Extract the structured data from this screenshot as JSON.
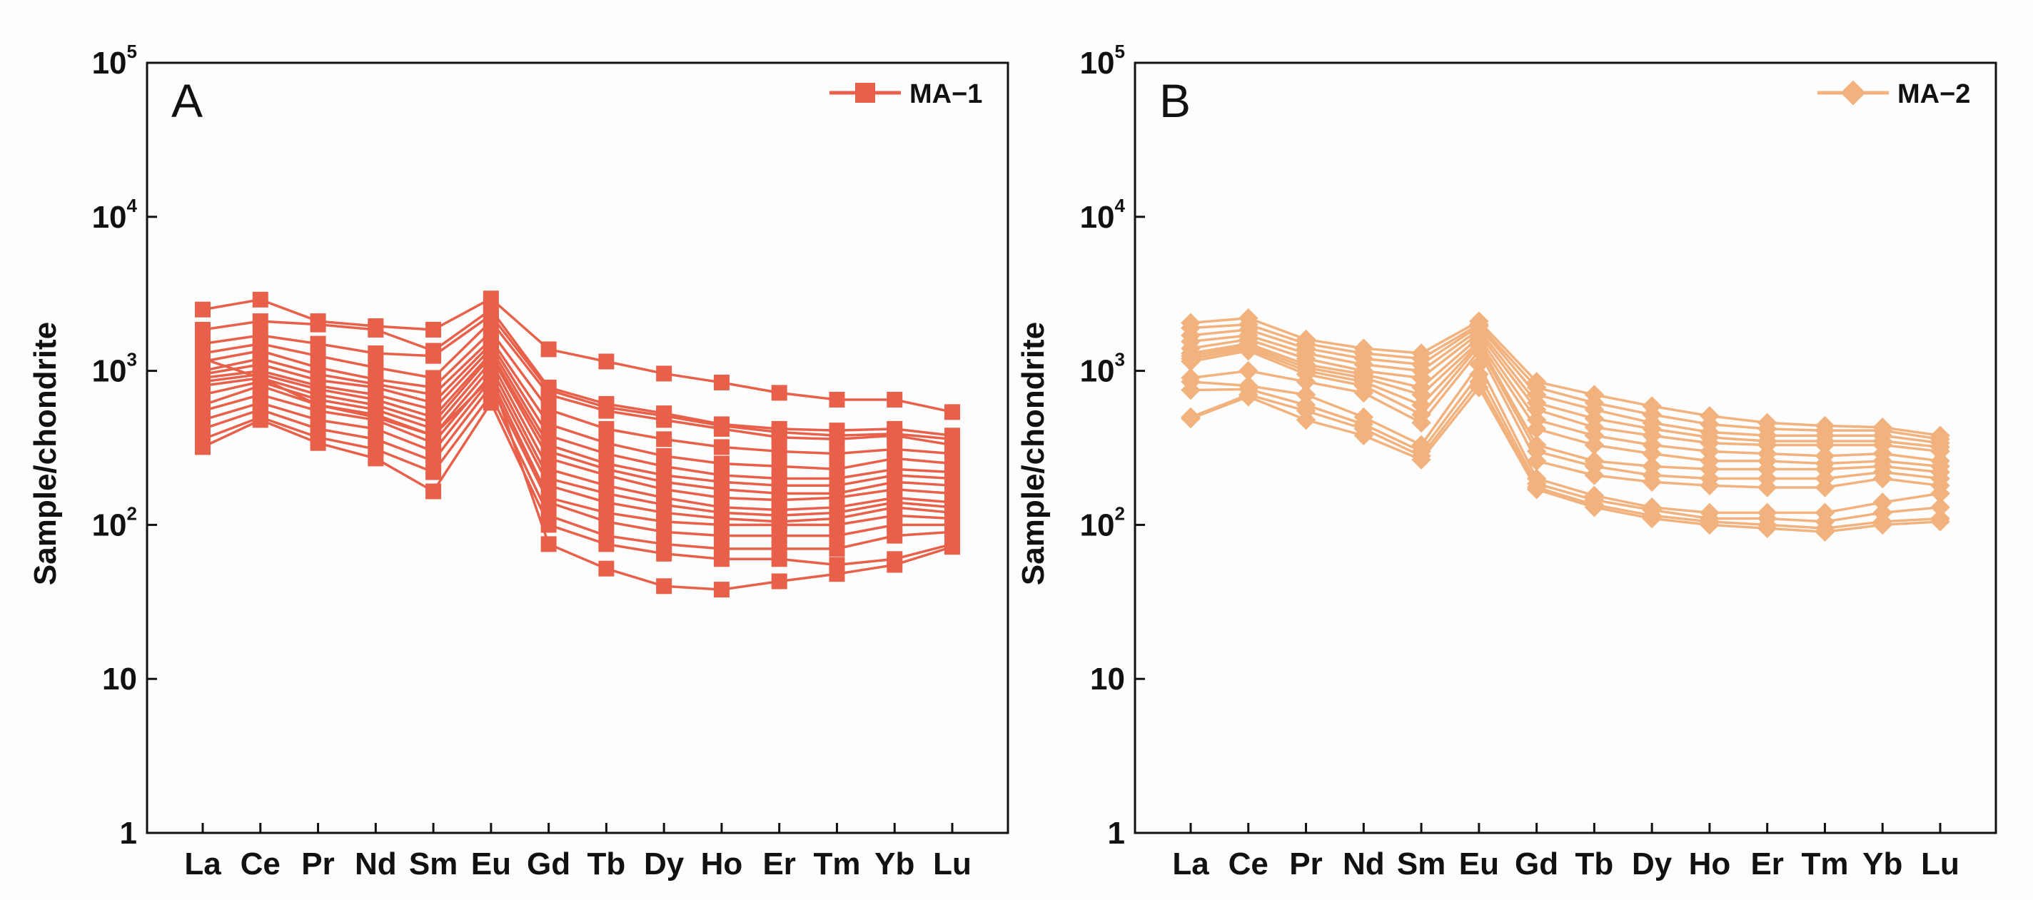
{
  "chart_data": [
    {
      "type": "line",
      "panel_label": "A",
      "ylabel": "Sample/chondrite",
      "yscale": "log",
      "ylim": [
        1,
        100000
      ],
      "y_ticks": [
        {
          "value": 1,
          "base": "1",
          "exp": ""
        },
        {
          "value": 10,
          "base": "10",
          "exp": ""
        },
        {
          "value": 100,
          "base": "10",
          "exp": "2"
        },
        {
          "value": 1000,
          "base": "10",
          "exp": "3"
        },
        {
          "value": 10000,
          "base": "10",
          "exp": "4"
        },
        {
          "value": 100000,
          "base": "10",
          "exp": "5"
        }
      ],
      "categories": [
        "La",
        "Ce",
        "Pr",
        "Nd",
        "Sm",
        "Eu",
        "Gd",
        "Tb",
        "Dy",
        "Ho",
        "Er",
        "Tm",
        "Yb",
        "Lu"
      ],
      "legend": {
        "label": "MA−1",
        "placement": "top-right"
      },
      "color": "#e8604a",
      "marker": "square",
      "series": [
        {
          "values": [
            2500,
            2900,
            2100,
            1950,
            1850,
            2950,
            1380,
            1150,
            960,
            840,
            720,
            650,
            650,
            540
          ]
        },
        {
          "values": [
            1850,
            2100,
            2000,
            1850,
            1350,
            2500,
            780,
            610,
            530,
            450,
            420,
            410,
            420,
            380
          ]
        },
        {
          "values": [
            1500,
            1700,
            1500,
            1300,
            1250,
            2300,
            750,
            580,
            510,
            440,
            400,
            380,
            390,
            360
          ]
        },
        {
          "values": [
            1300,
            1500,
            1250,
            1050,
            900,
            2100,
            700,
            550,
            480,
            420,
            370,
            360,
            380,
            330
          ]
        },
        {
          "values": [
            1150,
            1350,
            1050,
            880,
            780,
            1800,
            560,
            420,
            360,
            320,
            300,
            290,
            310,
            290
          ]
        },
        {
          "values": [
            1000,
            1200,
            950,
            820,
            700,
            1600,
            450,
            340,
            280,
            250,
            240,
            230,
            270,
            250
          ]
        },
        {
          "values": [
            950,
            1100,
            870,
            780,
            620,
            1500,
            380,
            290,
            240,
            210,
            200,
            200,
            230,
            220
          ]
        },
        {
          "values": [
            900,
            1000,
            800,
            700,
            560,
            1400,
            330,
            250,
            210,
            190,
            180,
            180,
            210,
            200
          ]
        },
        {
          "values": [
            850,
            950,
            760,
            650,
            500,
            1300,
            300,
            230,
            190,
            170,
            160,
            160,
            190,
            180
          ]
        },
        {
          "values": [
            800,
            900,
            700,
            600,
            460,
            1250,
            270,
            210,
            170,
            150,
            145,
            150,
            170,
            160
          ]
        },
        {
          "values": [
            700,
            850,
            650,
            560,
            420,
            1150,
            230,
            180,
            150,
            130,
            125,
            130,
            150,
            140
          ]
        },
        {
          "values": [
            600,
            800,
            600,
            520,
            380,
            1050,
            200,
            160,
            135,
            120,
            115,
            120,
            140,
            130
          ]
        },
        {
          "values": [
            550,
            700,
            550,
            480,
            340,
            950,
            180,
            140,
            120,
            110,
            105,
            110,
            130,
            120
          ]
        },
        {
          "values": [
            480,
            620,
            480,
            420,
            300,
            880,
            150,
            120,
            105,
            100,
            100,
            100,
            115,
            110
          ]
        },
        {
          "values": [
            420,
            560,
            420,
            360,
            260,
            800,
            140,
            105,
            90,
            85,
            85,
            85,
            100,
            100
          ]
        },
        {
          "values": [
            360,
            500,
            370,
            310,
            220,
            700,
            115,
            85,
            75,
            70,
            70,
            70,
            85,
            90
          ]
        },
        {
          "values": [
            320,
            480,
            340,
            270,
            165,
            620,
            100,
            75,
            65,
            60,
            60,
            55,
            60,
            75
          ]
        },
        {
          "values": [
            1200,
            900,
            600,
            500,
            380,
            900,
            75,
            52,
            40,
            38,
            43,
            48,
            55,
            72
          ]
        }
      ]
    },
    {
      "type": "line",
      "panel_label": "B",
      "ylabel": "Sample/chondrite",
      "yscale": "log",
      "ylim": [
        1,
        100000
      ],
      "y_ticks": [
        {
          "value": 1,
          "base": "1",
          "exp": ""
        },
        {
          "value": 10,
          "base": "10",
          "exp": ""
        },
        {
          "value": 100,
          "base": "10",
          "exp": "2"
        },
        {
          "value": 1000,
          "base": "10",
          "exp": "3"
        },
        {
          "value": 10000,
          "base": "10",
          "exp": "4"
        },
        {
          "value": 100000,
          "base": "10",
          "exp": "5"
        }
      ],
      "categories": [
        "La",
        "Ce",
        "Pr",
        "Nd",
        "Sm",
        "Eu",
        "Gd",
        "Tb",
        "Dy",
        "Ho",
        "Er",
        "Tm",
        "Yb",
        "Lu"
      ],
      "legend": {
        "label": "MA−2",
        "placement": "top-right"
      },
      "color": "#f2b27e",
      "marker": "diamond",
      "series": [
        {
          "values": [
            2050,
            2200,
            1600,
            1400,
            1300,
            2100,
            850,
            700,
            590,
            510,
            460,
            440,
            430,
            380
          ]
        },
        {
          "values": [
            1900,
            2000,
            1500,
            1300,
            1200,
            2000,
            780,
            620,
            520,
            450,
            420,
            410,
            410,
            360
          ]
        },
        {
          "values": [
            1700,
            1850,
            1400,
            1200,
            1100,
            1950,
            700,
            560,
            460,
            400,
            380,
            380,
            380,
            340
          ]
        },
        {
          "values": [
            1550,
            1700,
            1300,
            1100,
            1000,
            1850,
            620,
            490,
            420,
            370,
            350,
            350,
            350,
            320
          ]
        },
        {
          "values": [
            1400,
            1600,
            1200,
            1000,
            900,
            1750,
            560,
            430,
            380,
            340,
            330,
            330,
            330,
            300
          ]
        },
        {
          "values": [
            1300,
            1500,
            1100,
            950,
            780,
            1650,
            480,
            380,
            330,
            300,
            290,
            280,
            290,
            260
          ]
        },
        {
          "values": [
            1250,
            1450,
            1050,
            900,
            700,
            1550,
            420,
            330,
            290,
            260,
            260,
            250,
            260,
            240
          ]
        },
        {
          "values": [
            1200,
            1400,
            1000,
            850,
            600,
            1500,
            330,
            260,
            240,
            230,
            230,
            230,
            240,
            220
          ]
        },
        {
          "values": [
            1150,
            1350,
            950,
            800,
            520,
            1450,
            300,
            240,
            210,
            200,
            200,
            200,
            220,
            200
          ]
        },
        {
          "values": [
            900,
            1000,
            850,
            720,
            460,
            1350,
            260,
            210,
            190,
            180,
            175,
            175,
            200,
            180
          ]
        },
        {
          "values": [
            850,
            800,
            700,
            500,
            330,
            1100,
            200,
            155,
            130,
            120,
            120,
            120,
            140,
            160
          ]
        },
        {
          "values": [
            750,
            760,
            600,
            450,
            300,
            950,
            185,
            145,
            125,
            110,
            110,
            105,
            120,
            130
          ]
        },
        {
          "values": [
            500,
            700,
            550,
            420,
            280,
            850,
            175,
            135,
            115,
            105,
            100,
            95,
            105,
            110
          ]
        },
        {
          "values": [
            490,
            680,
            480,
            380,
            265,
            780,
            170,
            130,
            110,
            100,
            95,
            90,
            100,
            105
          ]
        }
      ]
    }
  ]
}
